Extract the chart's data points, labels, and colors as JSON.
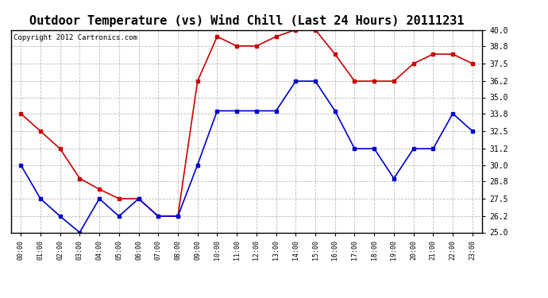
{
  "title": "Outdoor Temperature (vs) Wind Chill (Last 24 Hours) 20111231",
  "copyright": "Copyright 2012 Cartronics.com",
  "hours": [
    "00:00",
    "01:00",
    "02:00",
    "03:00",
    "04:00",
    "05:00",
    "06:00",
    "07:00",
    "08:00",
    "09:00",
    "10:00",
    "11:00",
    "12:00",
    "13:00",
    "14:00",
    "15:00",
    "16:00",
    "17:00",
    "18:00",
    "19:00",
    "20:00",
    "21:00",
    "22:00",
    "23:00"
  ],
  "outdoor_temp": [
    30.0,
    27.5,
    26.2,
    25.0,
    27.5,
    26.2,
    27.5,
    26.2,
    26.2,
    30.0,
    34.0,
    34.0,
    34.0,
    34.0,
    36.2,
    36.2,
    34.0,
    31.2,
    31.2,
    29.0,
    31.2,
    31.2,
    33.8,
    32.5
  ],
  "wind_chill": [
    33.8,
    32.5,
    31.2,
    29.0,
    28.2,
    27.5,
    27.5,
    26.2,
    26.2,
    36.2,
    39.5,
    38.8,
    38.8,
    39.5,
    40.0,
    40.0,
    38.2,
    36.2,
    36.2,
    36.2,
    37.5,
    38.2,
    38.2,
    37.5
  ],
  "temp_color": "#0000cc",
  "chill_color": "#cc0000",
  "bg_color": "#ffffff",
  "grid_color": "#aaaaaa",
  "ylim": [
    25.0,
    40.0
  ],
  "yticks": [
    25.0,
    26.2,
    27.5,
    28.8,
    30.0,
    31.2,
    32.5,
    33.8,
    35.0,
    36.2,
    37.5,
    38.8,
    40.0
  ],
  "title_fontsize": 11,
  "copyright_fontsize": 6.5,
  "tick_fontsize": 7,
  "xtick_fontsize": 6
}
